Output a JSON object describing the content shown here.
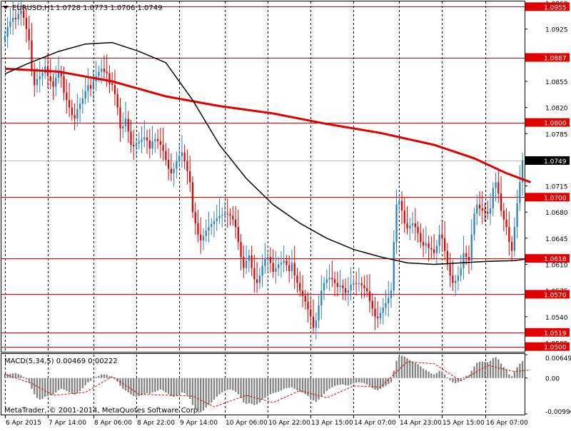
{
  "header": {
    "symbol": "EURUSD,H1",
    "ohlc": "1.0728 1.0773 1.0706 1.0749",
    "collapse_icon": "triangle-down-icon"
  },
  "macd_header": "MACD(5,34,5) 0.00469 0.00222",
  "copyright": "MetaTrader, © 2001-2014, MetaQuotes Software Corp.",
  "colors": {
    "bull": "#2c7fc1",
    "bear": "#e00000",
    "ma_slow": "#e00000",
    "ma_fast": "#000000",
    "level_line": "#e00000",
    "level_label_bg": "#e00000",
    "current_label_bg": "#000000",
    "grid": "#000000",
    "histogram": "#808080",
    "signal": "#e00000"
  },
  "chart_data": {
    "type": "candlestick",
    "symbol": "EURUSD",
    "timeframe": "H1",
    "ylim": [
      1.0493,
      1.0962
    ],
    "yticks": [
      "1.0960",
      "1.0925",
      "1.0890",
      "1.0855",
      "1.0820",
      "1.0785",
      "1.0750",
      "1.0715",
      "1.0680",
      "1.0645",
      "1.0610",
      "1.0575",
      "1.0540",
      "1.0505"
    ],
    "xticks": [
      "6 Apr 2015",
      "7 Apr 14:00",
      "8 Apr 06:00",
      "8 Apr 22:00",
      "9 Apr 14:00",
      "10 Apr 06:00",
      "10 Apr 22:00",
      "13 Apr 15:00",
      "14 Apr 07:00",
      "14 Apr 23:00",
      "15 Apr 15:00",
      "16 Apr 07:00"
    ],
    "levels": [
      {
        "label": "1.0955",
        "value": 1.0955
      },
      {
        "label": "1.0887",
        "value": 1.0887
      },
      {
        "label": "1.0800",
        "value": 1.08
      },
      {
        "label": "1.0700",
        "value": 1.07
      },
      {
        "label": "1.0618",
        "value": 1.0618
      },
      {
        "label": "1.0570",
        "value": 1.057
      },
      {
        "label": "1.0519",
        "value": 1.0519
      },
      {
        "label": "1.0500",
        "value": 1.05
      }
    ],
    "current_price": {
      "label": "1.0749",
      "value": 1.0749
    },
    "closes": [
      1.0915,
      1.0928,
      1.0935,
      1.094,
      1.0938,
      1.0945,
      1.095,
      1.094,
      1.0925,
      1.091,
      1.087,
      1.085,
      1.0858,
      1.0862,
      1.0866,
      1.0875,
      1.0862,
      1.0855,
      1.0848,
      1.086,
      1.0868,
      1.0862,
      1.084,
      1.083,
      1.082,
      1.081,
      1.0805,
      1.0818,
      1.0825,
      1.0832,
      1.0842,
      1.085,
      1.0845,
      1.0855,
      1.0862,
      1.0868,
      1.0872,
      1.0868,
      1.0866,
      1.0852,
      1.085,
      1.0838,
      1.082,
      1.0792,
      1.0795,
      1.0805,
      1.0788,
      1.077,
      1.0768,
      1.0772,
      1.0774,
      1.0777,
      1.078,
      1.0776,
      1.0765,
      1.0775,
      1.0778,
      1.0775,
      1.077,
      1.0762,
      1.075,
      1.0738,
      1.0732,
      1.0738,
      1.0748,
      1.0755,
      1.076,
      1.0748,
      1.0735,
      1.072,
      1.068,
      1.0665,
      1.065,
      1.0642,
      1.0648,
      1.0655,
      1.066,
      1.0664,
      1.0668,
      1.0672,
      1.0675,
      1.0676,
      1.0678,
      1.0677,
      1.0675,
      1.067,
      1.066,
      1.064,
      1.062,
      1.0605,
      1.0615,
      1.0622,
      1.0605,
      1.059,
      1.0585,
      1.0595,
      1.0608,
      1.0618,
      1.062,
      1.0612,
      1.06,
      1.0605,
      1.061,
      1.0612,
      1.0615,
      1.0609,
      1.0601,
      1.0612,
      1.0595,
      1.0585,
      1.0575,
      1.0568,
      1.056,
      1.055,
      1.054,
      1.0525,
      1.0535,
      1.0555,
      1.0575,
      1.0585,
      1.059,
      1.0592,
      1.059,
      1.0585,
      1.058,
      1.0582,
      1.0578,
      1.0572,
      1.0575,
      1.0583,
      1.0585,
      1.0584,
      1.0585,
      1.0582,
      1.0578,
      1.0574,
      1.0561,
      1.0551,
      1.054,
      1.0538,
      1.0545,
      1.0552,
      1.0558,
      1.0565,
      1.0575,
      1.064,
      1.069,
      1.0695,
      1.0682,
      1.0665,
      1.0658,
      1.0662,
      1.0665,
      1.066,
      1.0652,
      1.064,
      1.0635,
      1.0638,
      1.0632,
      1.063,
      1.0625,
      1.0635,
      1.065,
      1.0645,
      1.0628,
      1.061,
      1.0595,
      1.0585,
      1.0588,
      1.0595,
      1.0605,
      1.0625,
      1.062,
      1.0615,
      1.065,
      1.0678,
      1.069,
      1.0685,
      1.0682,
      1.068,
      1.0678,
      1.0685,
      1.0712,
      1.072,
      1.0705,
      1.0682,
      1.067,
      1.066,
      1.064,
      1.0628,
      1.066,
      1.0692,
      1.072,
      1.0749
    ],
    "series": [
      {
        "name": "",
        "kind": "moving-average",
        "color": "#e00000",
        "points": [
          [
            0,
            1.0872
          ],
          [
            20,
            1.0868
          ],
          [
            40,
            1.0855
          ],
          [
            60,
            1.0835
          ],
          [
            80,
            1.0822
          ],
          [
            100,
            1.0812
          ],
          [
            120,
            1.0798
          ],
          [
            140,
            1.0786
          ],
          [
            160,
            1.077
          ],
          [
            175,
            1.0752
          ],
          [
            187,
            1.0732
          ],
          [
            196,
            1.072
          ]
        ]
      },
      {
        "name": "",
        "kind": "moving-average",
        "color": "#000000",
        "points": [
          [
            0,
            1.0865
          ],
          [
            8,
            1.0878
          ],
          [
            20,
            1.0895
          ],
          [
            30,
            1.0905
          ],
          [
            40,
            1.0907
          ],
          [
            50,
            1.0895
          ],
          [
            60,
            1.088
          ],
          [
            70,
            1.083
          ],
          [
            80,
            1.077
          ],
          [
            90,
            1.0725
          ],
          [
            100,
            1.069
          ],
          [
            110,
            1.0665
          ],
          [
            120,
            1.0645
          ],
          [
            130,
            1.063
          ],
          [
            140,
            1.062
          ],
          [
            150,
            1.0612
          ],
          [
            160,
            1.061
          ],
          [
            170,
            1.0612
          ],
          [
            180,
            1.0614
          ],
          [
            190,
            1.0615
          ],
          [
            196,
            1.0618
          ]
        ]
      }
    ],
    "macd": {
      "params": "MACD(5,34,5)",
      "main": 0.00469,
      "signal": 0.00222,
      "ylim": [
        -0.00996,
        0.00649
      ],
      "yticks": [
        "0.00649",
        "0.00",
        "-0.00996"
      ],
      "histogram": [
        0.0012,
        0.0011,
        0.0012,
        0.0013,
        0.0014,
        0.0011,
        0.0008,
        0.0003,
        -0.0004,
        -0.0012,
        -0.003,
        -0.0045,
        -0.0055,
        -0.006,
        -0.0058,
        -0.0052,
        -0.005,
        -0.0048,
        -0.0046,
        -0.004,
        -0.0034,
        -0.003,
        -0.0032,
        -0.0036,
        -0.004,
        -0.0044,
        -0.0046,
        -0.0042,
        -0.0036,
        -0.0028,
        -0.002,
        -0.0012,
        -0.0008,
        -0.0002,
        0.0003,
        0.0006,
        0.001,
        0.001,
        0.0009,
        0.0005,
        0.0002,
        -0.0003,
        -0.001,
        -0.0022,
        -0.003,
        -0.0035,
        -0.004,
        -0.0046,
        -0.005,
        -0.0052,
        -0.005,
        -0.0048,
        -0.0045,
        -0.0042,
        -0.0044,
        -0.004,
        -0.0038,
        -0.0035,
        -0.0032,
        -0.0035,
        -0.004,
        -0.0045,
        -0.005,
        -0.0052,
        -0.005,
        -0.0045,
        -0.004,
        -0.0042,
        -0.0048,
        -0.0058,
        -0.0075,
        -0.0085,
        -0.0092,
        -0.0095,
        -0.009,
        -0.0082,
        -0.0075,
        -0.0068,
        -0.006,
        -0.0052,
        -0.0045,
        -0.004,
        -0.0036,
        -0.0033,
        -0.0032,
        -0.0034,
        -0.0038,
        -0.0045,
        -0.0055,
        -0.0068,
        -0.0072,
        -0.007,
        -0.0072,
        -0.0075,
        -0.0073,
        -0.0068,
        -0.006,
        -0.0055,
        -0.005,
        -0.0045,
        -0.0042,
        -0.004,
        -0.0038,
        -0.0035,
        -0.003,
        -0.0028,
        -0.0027,
        -0.0026,
        -0.003,
        -0.0034,
        -0.0038,
        -0.004,
        -0.0045,
        -0.005,
        -0.0055,
        -0.0062,
        -0.0066,
        -0.006,
        -0.0052,
        -0.0044,
        -0.0036,
        -0.003,
        -0.0026,
        -0.0022,
        -0.002,
        -0.0019,
        -0.0018,
        -0.002,
        -0.0021,
        -0.0018,
        -0.0015,
        -0.0013,
        -0.0012,
        -0.0013,
        -0.0015,
        -0.0018,
        -0.0022,
        -0.0028,
        -0.0032,
        -0.0034,
        -0.003,
        -0.0026,
        -0.0022,
        -0.0017,
        -0.0012,
        0.002,
        0.0048,
        0.006,
        0.0062,
        0.006,
        0.0055,
        0.005,
        0.0046,
        0.0042,
        0.0038,
        0.0032,
        0.0026,
        0.0022,
        0.0018,
        0.0013,
        0.001,
        0.0014,
        0.002,
        0.0018,
        0.001,
        0.0002,
        -0.0006,
        -0.0012,
        -0.0014,
        -0.0012,
        -0.0008,
        0.0002,
        0.0006,
        0.0008,
        0.002,
        0.0032,
        0.0042,
        0.0045,
        0.0046,
        0.0045,
        0.0044,
        0.0048,
        0.0055,
        0.0058,
        0.0052,
        0.004,
        0.003,
        0.0022,
        0.001,
        0.0005,
        0.0018,
        0.003,
        0.004,
        0.00469
      ],
      "signal_points": [
        [
          0,
          0.001
        ],
        [
          10,
          -0.0015
        ],
        [
          18,
          -0.0048
        ],
        [
          30,
          -0.004
        ],
        [
          40,
          0.0004
        ],
        [
          50,
          -0.0045
        ],
        [
          70,
          -0.005
        ],
        [
          78,
          -0.008
        ],
        [
          90,
          -0.0048
        ],
        [
          100,
          -0.0068
        ],
        [
          110,
          -0.0035
        ],
        [
          120,
          -0.0055
        ],
        [
          130,
          -0.0022
        ],
        [
          140,
          -0.0025
        ],
        [
          150,
          0.0045
        ],
        [
          160,
          0.004
        ],
        [
          170,
          -0.0008
        ],
        [
          180,
          0.0035
        ],
        [
          190,
          0.0018
        ],
        [
          196,
          0.00222
        ]
      ]
    }
  }
}
